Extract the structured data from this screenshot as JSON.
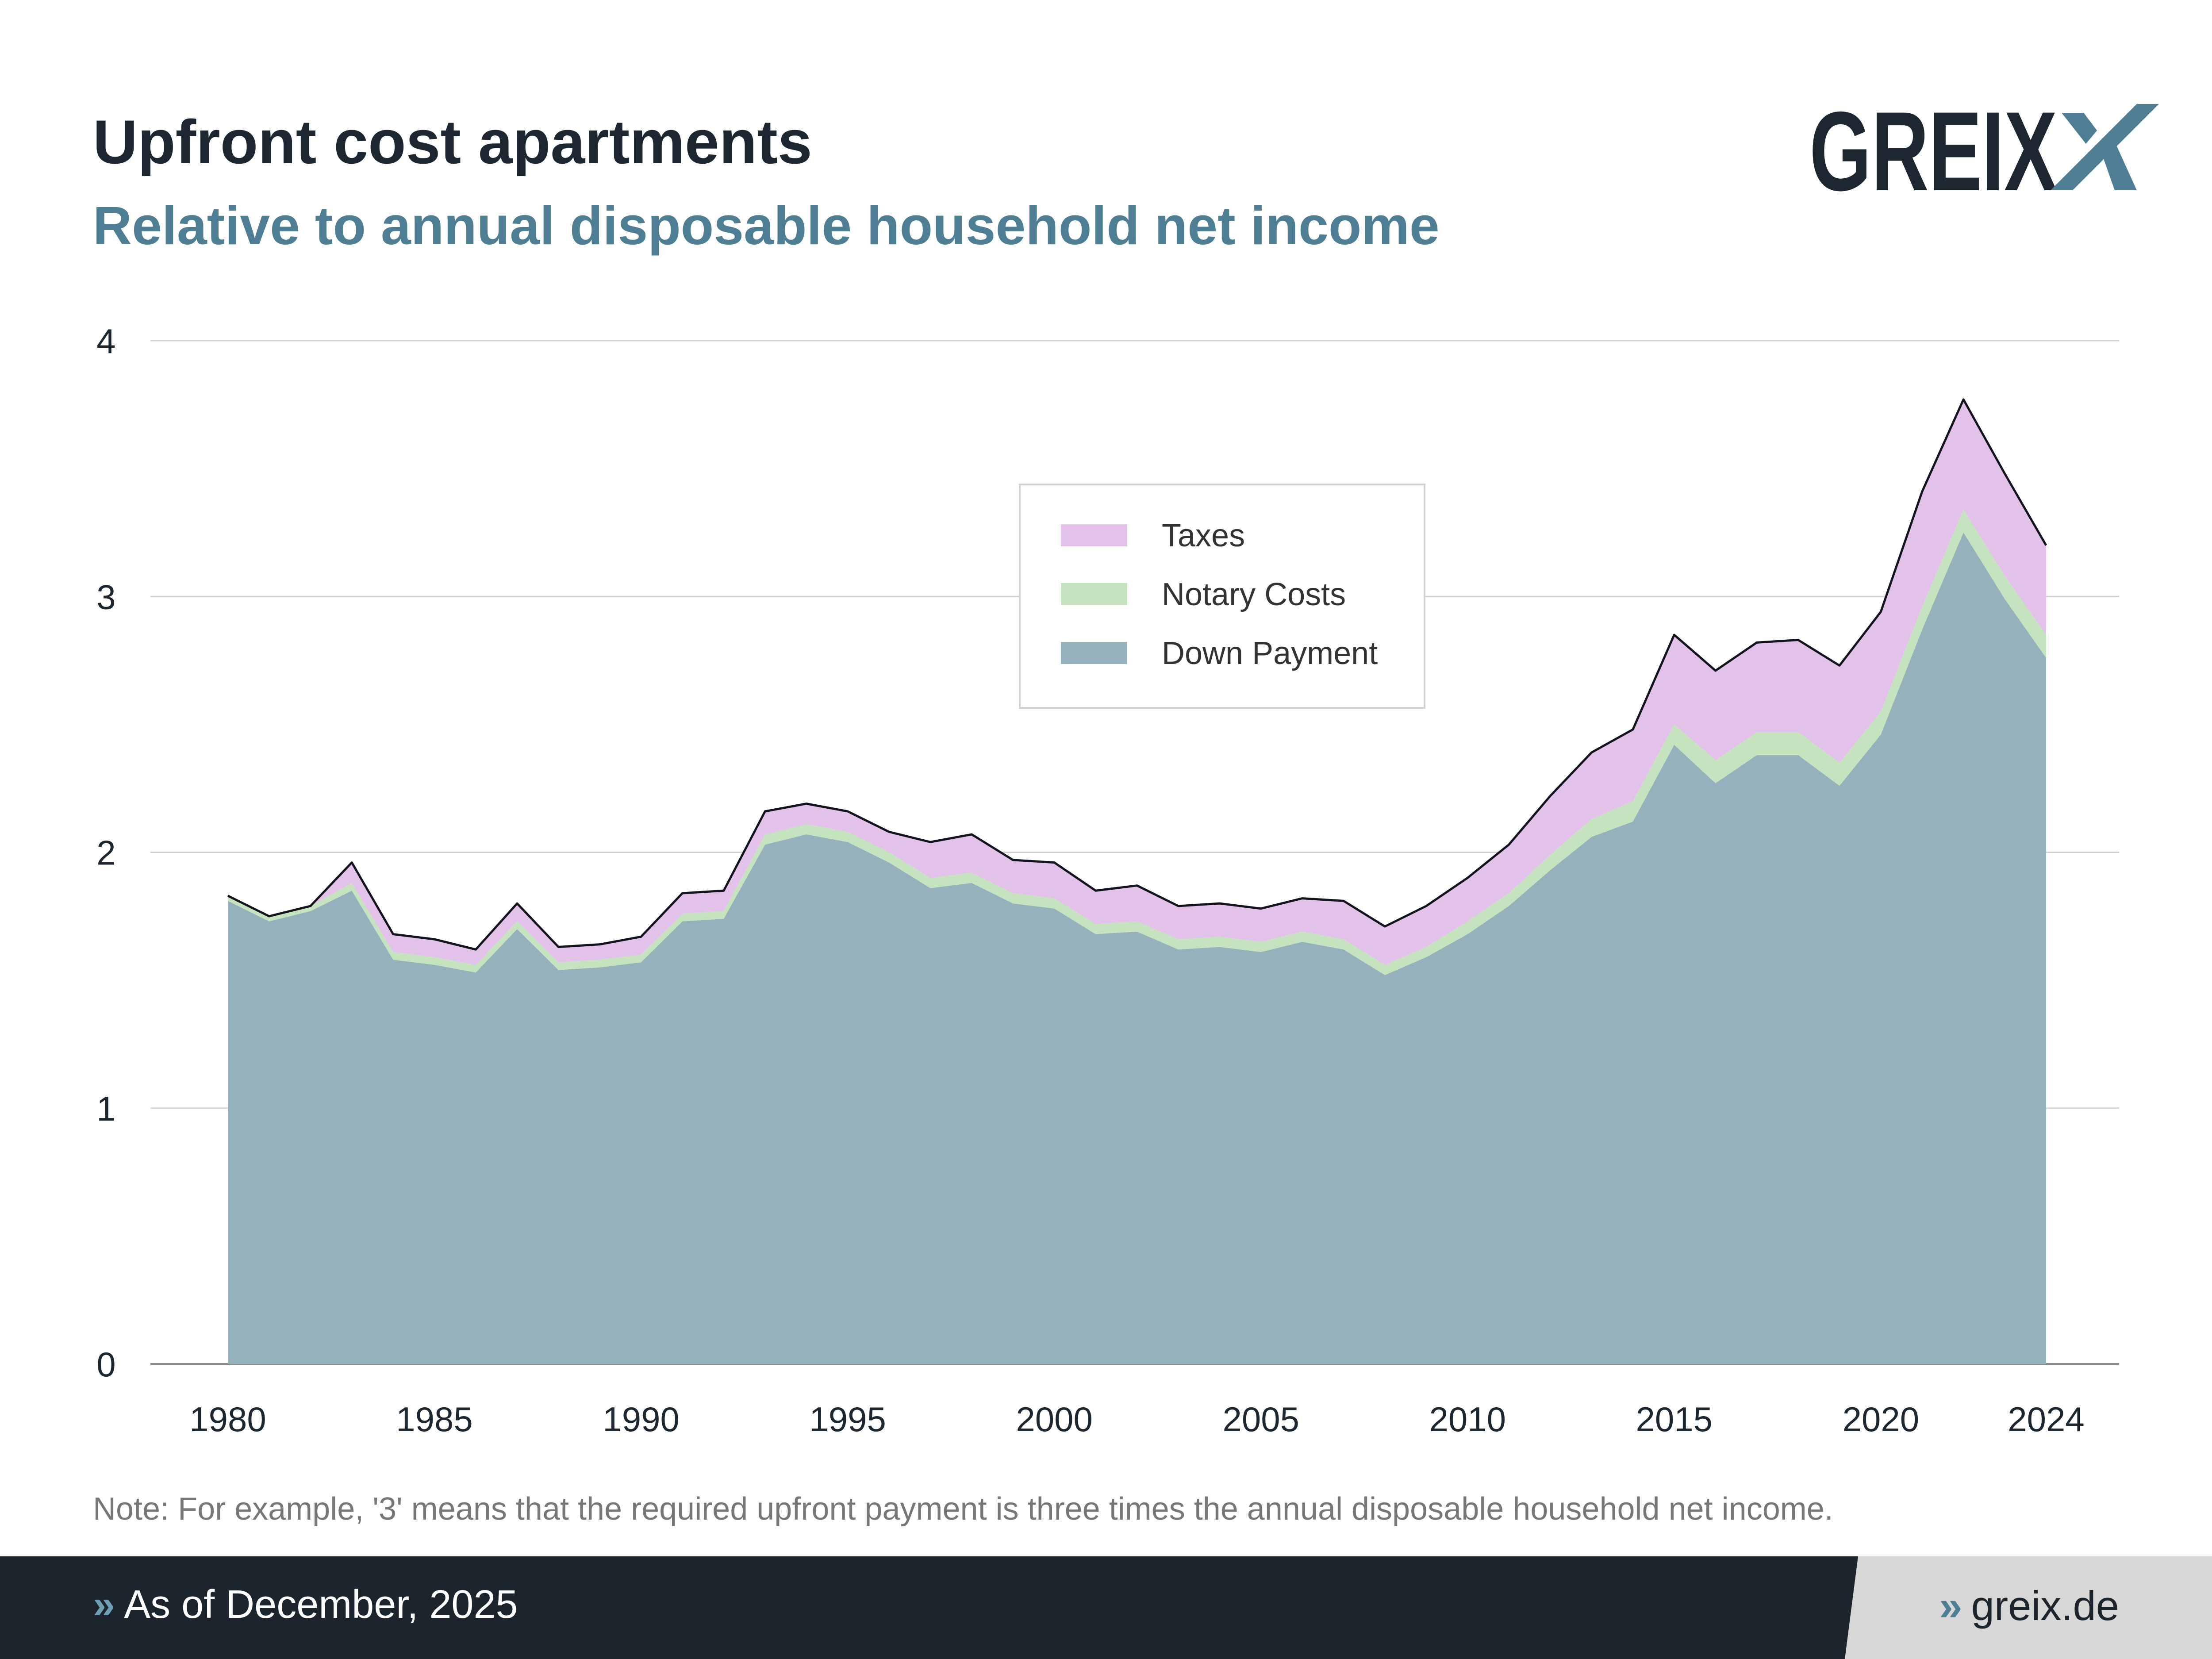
{
  "header": {
    "title": "Upfront cost apartments",
    "subtitle": "Relative to annual disposable household net income",
    "logo_text": "GREIX"
  },
  "note": "Note: For example, '3' means that the required upfront payment is three times the annual disposable household net income.",
  "footer": {
    "left_text": "As of December, 2025",
    "right_text": "greix.de",
    "chevron": "»"
  },
  "colors": {
    "down_payment": "#95b1bc",
    "notary": "#c5e3bf",
    "taxes": "#e2c2e8",
    "total_line": "#14141f",
    "title": "#1c2731",
    "subtitle": "#4d7e93",
    "logo_dark": "#1c2731",
    "logo_accent": "#4d7e93"
  },
  "chart_data": {
    "type": "area",
    "stacked": true,
    "x": [
      1980,
      1981,
      1982,
      1983,
      1984,
      1985,
      1986,
      1987,
      1988,
      1989,
      1990,
      1991,
      1992,
      1993,
      1994,
      1995,
      1996,
      1997,
      1998,
      1999,
      2000,
      2001,
      2002,
      2003,
      2004,
      2005,
      2006,
      2007,
      2008,
      2009,
      2010,
      2011,
      2012,
      2013,
      2014,
      2015,
      2016,
      2017,
      2018,
      2019,
      2020,
      2021,
      2022,
      2023,
      2024
    ],
    "series": [
      {
        "name": "Down Payment",
        "values": [
          1.81,
          1.73,
          1.77,
          1.85,
          1.58,
          1.56,
          1.53,
          1.7,
          1.54,
          1.55,
          1.57,
          1.73,
          1.74,
          2.03,
          2.07,
          2.04,
          1.96,
          1.86,
          1.88,
          1.8,
          1.78,
          1.68,
          1.69,
          1.62,
          1.63,
          1.61,
          1.65,
          1.62,
          1.52,
          1.59,
          1.68,
          1.79,
          1.93,
          2.06,
          2.12,
          2.42,
          2.27,
          2.38,
          2.38,
          2.26,
          2.46,
          2.87,
          3.25,
          2.99,
          2.76
        ]
      },
      {
        "name": "Notary Costs",
        "values": [
          0.02,
          0.02,
          0.02,
          0.03,
          0.03,
          0.03,
          0.03,
          0.03,
          0.03,
          0.03,
          0.03,
          0.03,
          0.03,
          0.04,
          0.04,
          0.04,
          0.04,
          0.04,
          0.04,
          0.04,
          0.04,
          0.04,
          0.04,
          0.04,
          0.04,
          0.04,
          0.04,
          0.04,
          0.04,
          0.04,
          0.05,
          0.05,
          0.06,
          0.07,
          0.08,
          0.08,
          0.09,
          0.09,
          0.09,
          0.09,
          0.09,
          0.09,
          0.09,
          0.09,
          0.09
        ]
      },
      {
        "name": "Taxes",
        "values": [
          0.0,
          0.0,
          0.0,
          0.08,
          0.07,
          0.07,
          0.06,
          0.07,
          0.06,
          0.06,
          0.07,
          0.08,
          0.08,
          0.09,
          0.08,
          0.08,
          0.08,
          0.14,
          0.15,
          0.13,
          0.14,
          0.13,
          0.14,
          0.13,
          0.13,
          0.13,
          0.13,
          0.15,
          0.15,
          0.16,
          0.17,
          0.19,
          0.23,
          0.26,
          0.28,
          0.35,
          0.35,
          0.35,
          0.36,
          0.38,
          0.39,
          0.45,
          0.43,
          0.4,
          0.35
        ]
      }
    ],
    "total": [
      1.83,
      1.75,
      1.79,
      1.96,
      1.68,
      1.66,
      1.62,
      1.8,
      1.63,
      1.64,
      1.67,
      1.84,
      1.85,
      2.16,
      2.19,
      2.16,
      2.08,
      2.04,
      2.07,
      1.97,
      1.96,
      1.85,
      1.87,
      1.79,
      1.8,
      1.78,
      1.82,
      1.81,
      1.71,
      1.79,
      1.9,
      2.03,
      2.22,
      2.39,
      2.48,
      2.85,
      2.71,
      2.82,
      2.83,
      2.73,
      2.94,
      3.41,
      3.77,
      3.48,
      3.2
    ],
    "xticks": [
      1980,
      1985,
      1990,
      1995,
      2000,
      2005,
      2010,
      2015,
      2020,
      2024
    ],
    "yticks": [
      0,
      1,
      2,
      3,
      4
    ],
    "ylim": [
      0,
      4
    ],
    "xlim": [
      1980,
      2024
    ],
    "grid": true,
    "legend": {
      "placement": "top-center",
      "order": [
        "Taxes",
        "Notary Costs",
        "Down Payment"
      ]
    }
  }
}
